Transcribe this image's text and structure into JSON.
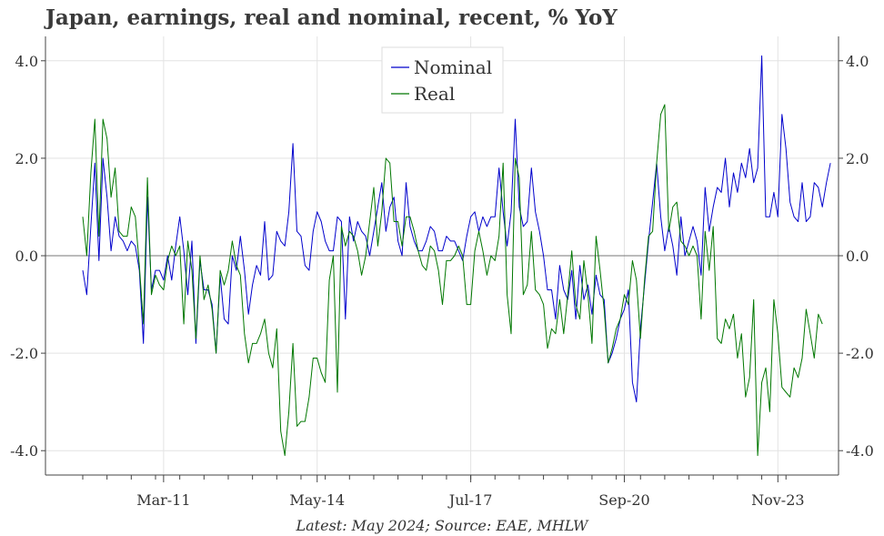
{
  "title": "Japan, earnings, real and nominal, recent, % YoY",
  "source": "Latest: May 2024; Source: EAE, MHLW",
  "chart_data": {
    "type": "line",
    "title": "Japan, earnings, real and nominal, recent, % YoY",
    "xlabel": "",
    "ylabel": "",
    "x_start": "2009-07",
    "x_end": "2024-05",
    "frequency": "monthly",
    "x_tick_labels": [
      "Mar-11",
      "May-14",
      "Jul-17",
      "Sep-20",
      "Nov-23"
    ],
    "x_tick_dates": [
      "2011-03",
      "2014-05",
      "2017-07",
      "2020-09",
      "2023-11"
    ],
    "y_tick_labels": [
      "4.0",
      "2.0",
      "0.0",
      "-2.0",
      "-4.0"
    ],
    "y_tick_labels_right": [
      "4.0",
      "2.0",
      "0.0",
      "-2.0",
      "-4.0"
    ],
    "ylim": [
      -4.5,
      4.5
    ],
    "grid": true,
    "legend_position": "top-center",
    "series": [
      {
        "name": "Nominal",
        "color": "#0000cc",
        "values": [
          -0.3,
          -0.8,
          0.6,
          1.9,
          -0.1,
          2.0,
          1.2,
          0.1,
          0.8,
          0.4,
          0.3,
          0.1,
          0.3,
          0.2,
          -0.3,
          -1.8,
          1.2,
          -0.7,
          -0.3,
          -0.3,
          -0.5,
          0.0,
          -0.5,
          0.2,
          0.8,
          0.1,
          -0.8,
          0.3,
          -1.8,
          -0.1,
          -0.7,
          -0.7,
          -1.0,
          -2.0,
          -0.4,
          -1.3,
          -1.4,
          0.0,
          -0.3,
          0.4,
          -0.3,
          -1.2,
          -0.6,
          -0.2,
          -0.4,
          0.7,
          -0.5,
          -0.4,
          0.5,
          0.3,
          0.2,
          0.9,
          2.3,
          0.5,
          0.4,
          -0.2,
          -0.3,
          0.5,
          0.9,
          0.7,
          0.3,
          0.1,
          0.1,
          0.8,
          0.7,
          -1.3,
          0.8,
          0.3,
          0.7,
          0.5,
          0.4,
          0.0,
          0.5,
          1.0,
          1.5,
          0.5,
          1.0,
          1.2,
          0.3,
          0.0,
          1.5,
          0.6,
          0.3,
          0.1,
          0.1,
          0.3,
          0.6,
          0.5,
          0.1,
          0.1,
          0.4,
          0.3,
          0.3,
          0.1,
          -0.1,
          0.4,
          0.8,
          0.9,
          0.5,
          0.8,
          0.6,
          0.8,
          0.8,
          1.8,
          0.9,
          0.2,
          0.9,
          2.8,
          1.0,
          0.6,
          0.7,
          1.8,
          0.9,
          0.5,
          0.0,
          -0.7,
          -0.7,
          -1.3,
          -0.2,
          -0.7,
          -0.9,
          -0.3,
          -1.3,
          -0.2,
          -0.9,
          -0.6,
          -1.2,
          -0.4,
          -0.8,
          -0.9,
          -2.2,
          -2.0,
          -1.7,
          -1.3,
          -1.1,
          -0.7,
          -2.6,
          -3.0,
          -1.5,
          -0.6,
          0.3,
          1.1,
          1.9,
          0.8,
          0.1,
          0.6,
          0.2,
          -0.4,
          0.8,
          0.0,
          0.3,
          0.6,
          0.3,
          -0.4,
          1.4,
          0.5,
          1.0,
          1.4,
          1.3,
          2.0,
          1.0,
          1.7,
          1.3,
          1.9,
          1.6,
          2.2,
          1.5,
          1.8,
          4.1,
          0.8,
          0.8,
          1.3,
          0.8,
          2.9,
          2.2,
          1.1,
          0.8,
          0.7,
          1.5,
          0.7,
          0.8,
          1.5,
          1.4,
          1.0,
          1.5,
          1.9
        ]
      },
      {
        "name": "Real",
        "color": "#007700",
        "values": [
          0.8,
          0.0,
          1.7,
          2.8,
          0.4,
          2.8,
          2.4,
          1.2,
          1.8,
          0.5,
          0.4,
          0.4,
          1.0,
          0.8,
          -0.2,
          -1.4,
          1.6,
          -0.8,
          -0.4,
          -0.6,
          -0.7,
          -0.1,
          0.2,
          0.0,
          0.2,
          -1.4,
          0.3,
          -0.3,
          -1.7,
          0.0,
          -0.9,
          -0.6,
          -1.1,
          -2.0,
          -0.3,
          -0.6,
          -0.3,
          0.3,
          -0.2,
          -0.4,
          -1.6,
          -2.2,
          -1.8,
          -1.8,
          -1.6,
          -1.3,
          -2.0,
          -2.3,
          -1.5,
          -3.6,
          -4.1,
          -3.2,
          -1.8,
          -3.5,
          -3.4,
          -3.4,
          -2.9,
          -2.1,
          -2.1,
          -2.4,
          -2.6,
          -0.5,
          0.0,
          -2.8,
          0.6,
          0.2,
          0.5,
          0.4,
          0.1,
          -0.4,
          0.0,
          0.7,
          1.4,
          0.2,
          0.9,
          2.0,
          1.9,
          0.7,
          0.7,
          0.2,
          0.8,
          0.8,
          0.5,
          0.1,
          -0.2,
          -0.3,
          0.2,
          0.1,
          -0.3,
          -1.0,
          -0.1,
          -0.1,
          0.0,
          0.2,
          0.0,
          -1.0,
          -1.0,
          0.1,
          0.5,
          0.1,
          -0.4,
          0.0,
          -0.1,
          0.4,
          1.9,
          -0.8,
          -1.6,
          2.0,
          1.6,
          -0.8,
          -0.6,
          0.5,
          -0.7,
          -0.8,
          -1.0,
          -1.9,
          -1.5,
          -1.6,
          -0.9,
          -1.6,
          -0.8,
          0.1,
          -1.0,
          -1.3,
          -0.1,
          -0.8,
          -1.8,
          0.4,
          -0.3,
          -1.1,
          -2.2,
          -1.9,
          -1.5,
          -1.3,
          -0.8,
          -1.0,
          -0.1,
          -0.5,
          -1.7,
          -0.5,
          0.4,
          0.5,
          1.9,
          2.9,
          3.1,
          0.5,
          1.0,
          1.1,
          0.3,
          0.2,
          0.0,
          0.2,
          0.0,
          -1.3,
          0.5,
          -0.3,
          0.6,
          -1.7,
          -1.8,
          -1.3,
          -1.5,
          -1.2,
          -2.1,
          -1.6,
          -2.9,
          -2.5,
          -0.9,
          -4.1,
          -2.6,
          -2.3,
          -3.2,
          -0.9,
          -1.6,
          -2.7,
          -2.8,
          -2.9,
          -2.3,
          -2.5,
          -2.1,
          -1.1,
          -1.6,
          -2.1,
          -1.2,
          -1.4
        ]
      }
    ]
  }
}
